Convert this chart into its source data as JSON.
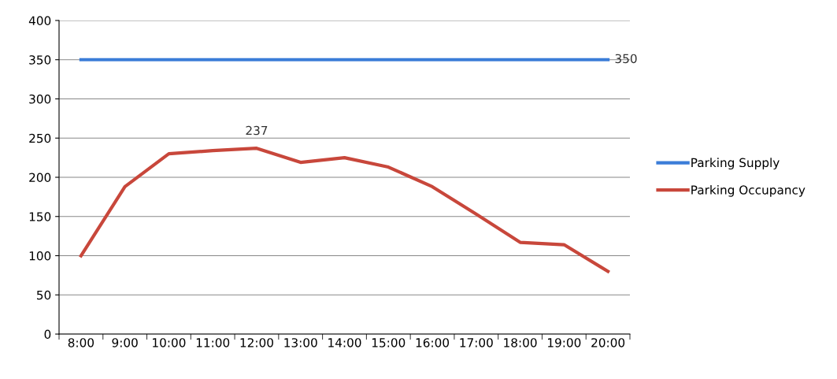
{
  "chart_data": {
    "type": "line",
    "categories": [
      "8:00",
      "9:00",
      "10:00",
      "11:00",
      "12:00",
      "13:00",
      "14:00",
      "15:00",
      "16:00",
      "17:00",
      "18:00",
      "19:00",
      "20:00"
    ],
    "series": [
      {
        "name": "Parking Supply",
        "color": "#3b7dd8",
        "values": [
          350,
          350,
          350,
          350,
          350,
          350,
          350,
          350,
          350,
          350,
          350,
          350,
          350
        ],
        "value_labels": [
          null,
          null,
          null,
          null,
          null,
          null,
          null,
          null,
          null,
          null,
          null,
          null,
          "350"
        ]
      },
      {
        "name": "Parking Occupancy",
        "color": "#c8473b",
        "values": [
          100,
          188,
          230,
          234,
          237,
          219,
          225,
          213,
          188,
          153,
          117,
          114,
          80
        ],
        "value_labels": [
          null,
          null,
          null,
          null,
          "237",
          null,
          null,
          null,
          null,
          null,
          null,
          null,
          null
        ]
      }
    ],
    "ylim": [
      0,
      400
    ],
    "yticks": [
      0,
      50,
      100,
      150,
      200,
      250,
      300,
      350,
      400
    ],
    "grid": "y",
    "legend": "right",
    "marker": "none",
    "line_style": "solid"
  }
}
